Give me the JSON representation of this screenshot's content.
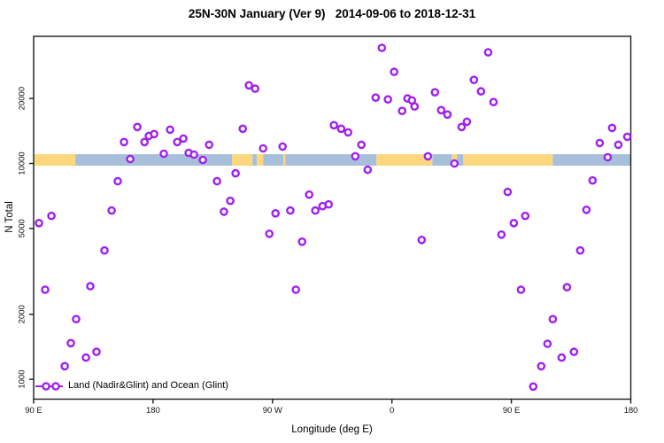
{
  "chart_data": {
    "type": "scatter",
    "title": "25N-30N January (Ver 9)   2014-09-06 to 2018-12-31",
    "xlabel": "Longitude (deg E)",
    "ylabel": "N Total",
    "x_scale": "longitude, wrapping eastward 90E to 180 (1.25 revolutions)",
    "y_scale": "log",
    "xlim": [
      90,
      540
    ],
    "ylim": [
      809,
      38800
    ],
    "grid": false,
    "x_ticks": [
      {
        "value": 90,
        "label": "90 E"
      },
      {
        "value": 180,
        "label": "180"
      },
      {
        "value": 270,
        "label": "90 W"
      },
      {
        "value": 360,
        "label": "0"
      },
      {
        "value": 450,
        "label": "90 E"
      },
      {
        "value": 540,
        "label": "180"
      }
    ],
    "y_ticks": [
      1000,
      2000,
      5000,
      10000,
      20000
    ],
    "legend": {
      "label": "Land (Nadir&Glint) and Ocean (Glint)",
      "position": "bottom-left",
      "marker": "line-with-two-open-circles"
    },
    "marker": {
      "shape": "open-circle",
      "color": "#A020F0",
      "fill": "#ffffff"
    },
    "map_strip": {
      "description": "land/ocean band drawn across the plot at N = 10000",
      "center_value": 10000,
      "land_color": "#FCD77D",
      "ocean_color": "#A8BFDB",
      "segments": [
        {
          "from": 90.0,
          "to": 121.4,
          "type": "land"
        },
        {
          "from": 121.4,
          "to": 239.6,
          "type": "ocean"
        },
        {
          "from": 239.6,
          "to": 254.9,
          "type": "land"
        },
        {
          "from": 254.9,
          "to": 258.2,
          "type": "ocean"
        },
        {
          "from": 258.2,
          "to": 262.9,
          "type": "land"
        },
        {
          "from": 262.9,
          "to": 278.3,
          "type": "ocean"
        },
        {
          "from": 278.3,
          "to": 279.6,
          "type": "land"
        },
        {
          "from": 279.6,
          "to": 348.4,
          "type": "ocean"
        },
        {
          "from": 348.4,
          "to": 390.4,
          "type": "land"
        },
        {
          "from": 390.4,
          "to": 405.1,
          "type": "ocean"
        },
        {
          "from": 405.1,
          "to": 409.1,
          "type": "land"
        },
        {
          "from": 409.1,
          "to": 413.8,
          "type": "ocean"
        },
        {
          "from": 413.8,
          "to": 481.2,
          "type": "land"
        },
        {
          "from": 481.2,
          "to": 540.0,
          "type": "ocean"
        }
      ]
    },
    "series": [
      {
        "name": "Land (Nadir&Glint) and Ocean (Glint)",
        "color": "#A020F0",
        "points": [
          [
            94.0,
            5290
          ],
          [
            98.7,
            2600
          ],
          [
            103.4,
            5710
          ],
          [
            113.4,
            1150
          ],
          [
            118.0,
            1470
          ],
          [
            122.0,
            1900
          ],
          [
            129.4,
            1260
          ],
          [
            132.7,
            2700
          ],
          [
            137.4,
            1340
          ],
          [
            143.4,
            3950
          ],
          [
            148.8,
            6050
          ],
          [
            153.4,
            8270
          ],
          [
            158.1,
            12560
          ],
          [
            162.8,
            10480
          ],
          [
            168.1,
            14750
          ],
          [
            173.5,
            12560
          ],
          [
            176.8,
            13410
          ],
          [
            180.8,
            13680
          ],
          [
            188.1,
            11090
          ],
          [
            192.8,
            14330
          ],
          [
            198.2,
            12560
          ],
          [
            202.8,
            13030
          ],
          [
            206.8,
            11200
          ],
          [
            210.8,
            10990
          ],
          [
            217.5,
            10380
          ],
          [
            222.2,
            12200
          ],
          [
            228.2,
            8270
          ],
          [
            233.4,
            5980
          ],
          [
            238.2,
            6710
          ],
          [
            242.2,
            9000
          ],
          [
            247.6,
            14480
          ],
          [
            252.2,
            23000
          ],
          [
            256.9,
            22200
          ],
          [
            262.9,
            11740
          ],
          [
            267.6,
            4720
          ],
          [
            272.3,
            5870
          ],
          [
            277.6,
            11970
          ],
          [
            283.4,
            6050
          ],
          [
            287.6,
            2600
          ],
          [
            292.3,
            4340
          ],
          [
            297.6,
            7170
          ],
          [
            302.3,
            6050
          ],
          [
            307.7,
            6340
          ],
          [
            312.3,
            6460
          ],
          [
            316.3,
            15030
          ],
          [
            321.7,
            14480
          ],
          [
            327.0,
            13930
          ],
          [
            332.4,
            10790
          ],
          [
            337.0,
            12200
          ],
          [
            341.7,
            9350
          ],
          [
            347.7,
            20180
          ],
          [
            352.4,
            34300
          ],
          [
            357.0,
            19800
          ],
          [
            361.7,
            26560
          ],
          [
            367.7,
            17500
          ],
          [
            371.7,
            20000
          ],
          [
            375.1,
            19600
          ],
          [
            377.1,
            18350
          ],
          [
            382.4,
            4420
          ],
          [
            387.1,
            10790
          ],
          [
            392.4,
            21350
          ],
          [
            397.1,
            17660
          ],
          [
            401.8,
            16840
          ],
          [
            407.1,
            10000
          ],
          [
            412.5,
            14750
          ],
          [
            416.5,
            15600
          ],
          [
            421.8,
            24380
          ],
          [
            427.1,
            21570
          ],
          [
            432.5,
            32700
          ],
          [
            436.5,
            19250
          ],
          [
            442.5,
            4680
          ],
          [
            447.2,
            7380
          ],
          [
            451.9,
            5290
          ],
          [
            457.2,
            2600
          ],
          [
            460.5,
            5710
          ],
          [
            466.5,
            925
          ],
          [
            472.5,
            1150
          ],
          [
            477.2,
            1460
          ],
          [
            481.2,
            1900
          ],
          [
            487.9,
            1260
          ],
          [
            491.9,
            2670
          ],
          [
            497.2,
            1340
          ],
          [
            501.9,
            3950
          ],
          [
            506.6,
            6100
          ],
          [
            511.2,
            8340
          ],
          [
            516.6,
            12440
          ],
          [
            522.6,
            10680
          ],
          [
            525.9,
            14600
          ],
          [
            530.6,
            12200
          ],
          [
            537.3,
            13280
          ]
        ]
      }
    ]
  }
}
